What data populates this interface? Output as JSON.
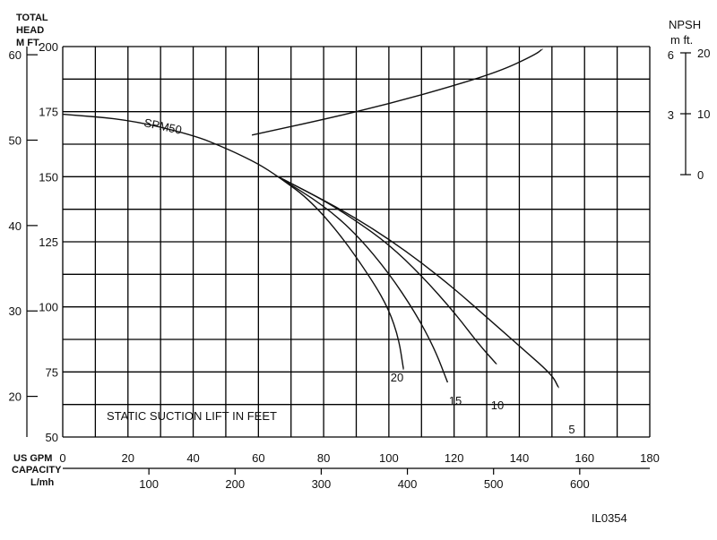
{
  "chart_data": {
    "type": "line",
    "x_axis_label_line1": "US GPM",
    "x_axis_label_line2": "CAPACITY",
    "x2_axis_label": "L/mh",
    "y_axis_label_line1": "TOTAL",
    "y_axis_label_line2": "HEAD",
    "y_axis_units": "M  FT.",
    "npsh_title": "NPSH",
    "npsh_units": "m   ft.",
    "xlim": [
      0,
      180
    ],
    "ylim": [
      50,
      200
    ],
    "x_ticks": [
      "0",
      "20",
      "40",
      "60",
      "80",
      "100",
      "120",
      "140",
      "160",
      "180"
    ],
    "y_ft_ticks": [
      "50",
      "75",
      "100",
      "125",
      "150",
      "175",
      "200"
    ],
    "y_m_ticks": [
      "20",
      "30",
      "40",
      "50",
      "60"
    ],
    "x_lmh_ticks": [
      "100",
      "200",
      "300",
      "400",
      "500",
      "600"
    ],
    "npsh_ft_ticks": [
      "0",
      "10",
      "20"
    ],
    "npsh_m_ticks": [
      "3",
      "6"
    ],
    "grid": true,
    "annotation": "STATIC SUCTION LIFT IN FEET",
    "figure_id": "IL0354",
    "series": [
      {
        "name": "SPM50",
        "points": [
          [
            0,
            174
          ],
          [
            20,
            172
          ],
          [
            40,
            166
          ],
          [
            50,
            161
          ],
          [
            60,
            155
          ],
          [
            66,
            150
          ]
        ]
      },
      {
        "name": "20",
        "points": [
          [
            66,
            150
          ],
          [
            75,
            142
          ],
          [
            85,
            128
          ],
          [
            95,
            110
          ],
          [
            100,
            99
          ],
          [
            103,
            88
          ],
          [
            104.5,
            76
          ]
        ]
      },
      {
        "name": "15",
        "points": [
          [
            66,
            150
          ],
          [
            80,
            139
          ],
          [
            90,
            128
          ],
          [
            100,
            113
          ],
          [
            108,
            98
          ],
          [
            114,
            84
          ],
          [
            118,
            71
          ]
        ]
      },
      {
        "name": "10",
        "points": [
          [
            66,
            150
          ],
          [
            80,
            141
          ],
          [
            90,
            133
          ],
          [
            100,
            124
          ],
          [
            110,
            112
          ],
          [
            120,
            98
          ],
          [
            128,
            85
          ],
          [
            133,
            78
          ]
        ]
      },
      {
        "name": "5",
        "points": [
          [
            66,
            150
          ],
          [
            80,
            141
          ],
          [
            90,
            134
          ],
          [
            100,
            126
          ],
          [
            110,
            117
          ],
          [
            120,
            107
          ],
          [
            130,
            96
          ],
          [
            140,
            85
          ],
          [
            150,
            74
          ],
          [
            152,
            69
          ]
        ]
      },
      {
        "name": "NPSH",
        "points": [
          [
            58,
            166
          ],
          [
            80,
            172
          ],
          [
            100,
            178
          ],
          [
            120,
            185
          ],
          [
            135,
            191
          ],
          [
            145,
            197
          ],
          [
            147,
            199
          ]
        ]
      }
    ],
    "series_labels": [
      "SPM50",
      "20",
      "15",
      "10",
      "5"
    ]
  }
}
